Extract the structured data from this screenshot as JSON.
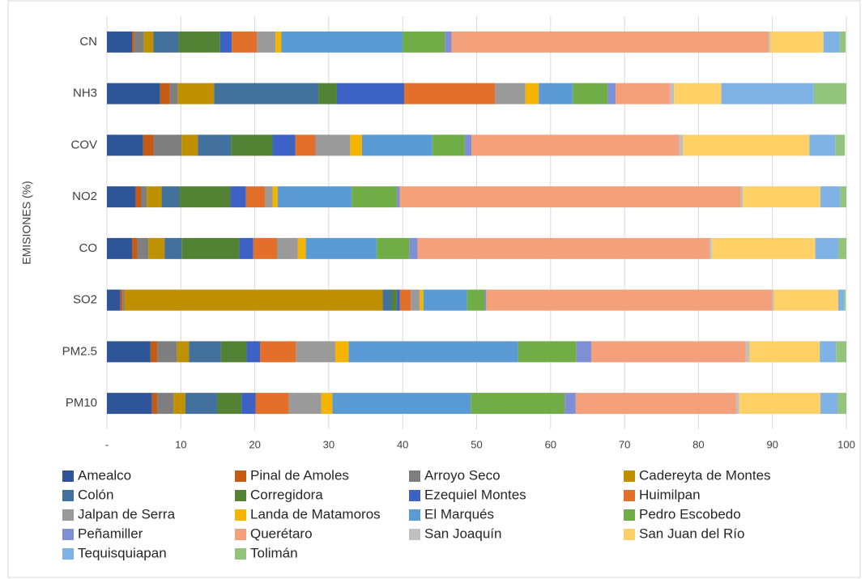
{
  "chart_data": {
    "type": "stacked_bar_horizontal",
    "y_label": "EMISIONES (%)",
    "categories": [
      "CN",
      "NH3",
      "COV",
      "NO2",
      "CO",
      "SO2",
      "PM2.5",
      "PM10"
    ],
    "xlim": [
      0,
      100
    ],
    "xticks": [
      {
        "value": 0,
        "label": "-"
      },
      10,
      20,
      30,
      40,
      50,
      60,
      70,
      80,
      90,
      100
    ],
    "grid": true,
    "series": [
      {
        "name": "Amealco",
        "color": "#2e5597",
        "values": [
          3.4,
          7.2,
          4.9,
          3.9,
          3.4,
          1.8,
          5.9,
          6.1
        ]
      },
      {
        "name": "Pinal de Amoles",
        "color": "#c55a11",
        "values": [
          0.3,
          1.3,
          1.4,
          0.7,
          0.7,
          0.3,
          0.9,
          0.7
        ]
      },
      {
        "name": "Arroyo Seco",
        "color": "#7f7f7f",
        "values": [
          1.3,
          1.1,
          3.8,
          0.8,
          1.5,
          0.3,
          2.7,
          2.2
        ]
      },
      {
        "name": "Cadereyta de Montes",
        "color": "#bf9000",
        "values": [
          1.3,
          4.9,
          2.2,
          2.0,
          2.2,
          34.9,
          1.6,
          1.6
        ]
      },
      {
        "name": "Colón",
        "color": "#41719c",
        "values": [
          3.4,
          14.1,
          4.5,
          2.4,
          2.3,
          1.2,
          4.3,
          4.3
        ]
      },
      {
        "name": "Corregidora",
        "color": "#548235",
        "values": [
          5.6,
          2.5,
          5.6,
          6.9,
          7.8,
          0.7,
          3.5,
          3.3
        ]
      },
      {
        "name": "Ezequiel Montes",
        "color": "#3b62c4",
        "values": [
          1.6,
          9.1,
          3.1,
          2.1,
          1.9,
          0.4,
          1.8,
          1.9
        ]
      },
      {
        "name": "Huimilpan",
        "color": "#e2702a",
        "values": [
          3.4,
          12.3,
          2.7,
          2.6,
          3.2,
          1.5,
          4.9,
          4.5
        ]
      },
      {
        "name": "Jalpan de Serra",
        "color": "#9a9a9a",
        "values": [
          2.5,
          4.1,
          4.7,
          1.0,
          2.8,
          1.2,
          5.3,
          4.4
        ]
      },
      {
        "name": "Landa de Matamoros",
        "color": "#f4b400",
        "values": [
          0.8,
          1.8,
          1.6,
          0.7,
          1.1,
          0.5,
          1.8,
          1.5
        ]
      },
      {
        "name": "El Marqués",
        "color": "#5b9bd5",
        "values": [
          16.4,
          4.6,
          9.5,
          10.0,
          9.6,
          5.9,
          22.9,
          18.7
        ]
      },
      {
        "name": "Pedro Escobedo",
        "color": "#70ad47",
        "values": [
          5.7,
          4.7,
          4.4,
          6.1,
          4.4,
          2.4,
          7.9,
          12.7
        ]
      },
      {
        "name": "Peñamiller",
        "color": "#7f8fd6",
        "values": [
          0.9,
          1.1,
          0.9,
          0.4,
          1.1,
          0.2,
          2.0,
          1.5
        ]
      },
      {
        "name": "Querétaro",
        "color": "#f4a07a",
        "values": [
          42.9,
          7.4,
          28.1,
          46.1,
          39.5,
          38.7,
          20.9,
          21.7
        ]
      },
      {
        "name": "San Joaquín",
        "color": "#c0c0c0",
        "values": [
          0.2,
          0.5,
          0.5,
          0.3,
          0.3,
          0.2,
          0.5,
          0.4
        ]
      },
      {
        "name": "San Juan del Río",
        "color": "#ffd066",
        "values": [
          7.2,
          6.4,
          17.1,
          10.5,
          14.0,
          8.7,
          9.5,
          11.0
        ]
      },
      {
        "name": "Tequisquiapan",
        "color": "#7fb2e5",
        "values": [
          2.2,
          12.5,
          3.5,
          2.7,
          3.1,
          0.8,
          2.2,
          2.3
        ]
      },
      {
        "name": "Tolimán",
        "color": "#93c47d",
        "values": [
          0.8,
          4.4,
          1.3,
          0.8,
          1.1,
          0.2,
          1.4,
          1.2
        ]
      }
    ]
  }
}
